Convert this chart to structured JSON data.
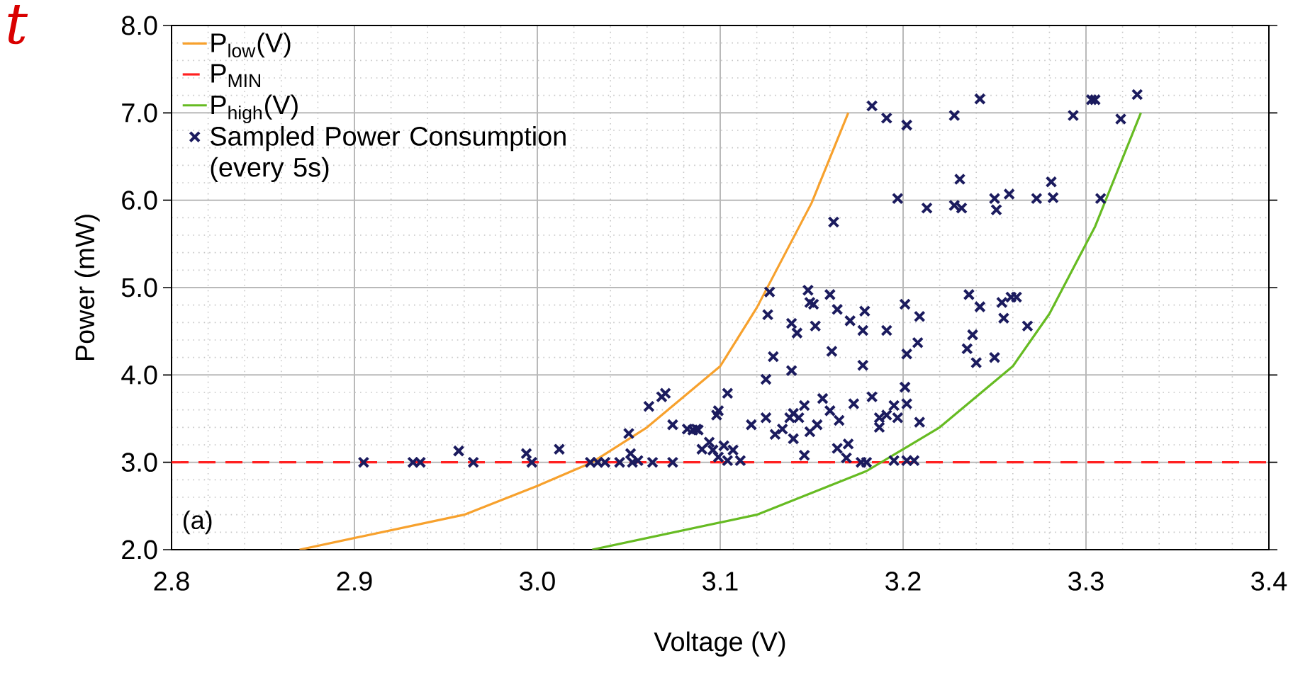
{
  "chart_data": {
    "type": "scatter",
    "xlabel": "Voltage (V)",
    "ylabel": "Power (mW)",
    "xlim": [
      2.8,
      3.4
    ],
    "ylim": [
      2.0,
      8.0
    ],
    "xticks": [
      {
        "value": 2.8,
        "label": "2.8"
      },
      {
        "value": 2.9,
        "label": "2.9"
      },
      {
        "value": 3.0,
        "label": "3.0"
      },
      {
        "value": 3.1,
        "label": "3.1"
      },
      {
        "value": 3.2,
        "label": "3.2"
      },
      {
        "value": 3.3,
        "label": "3.3"
      },
      {
        "value": 3.4,
        "label": "3.4"
      }
    ],
    "yticks": [
      {
        "value": 2,
        "label": "2.0"
      },
      {
        "value": 3,
        "label": "3.0"
      },
      {
        "value": 4,
        "label": "4.0"
      },
      {
        "value": 5,
        "label": "5.0"
      },
      {
        "value": 6,
        "label": "6.0"
      },
      {
        "value": 7,
        "label": "7.0"
      },
      {
        "value": 8,
        "label": "8.0"
      }
    ],
    "grid": true,
    "legend": "top left",
    "annotations": [
      "(a)",
      "t"
    ],
    "series": [
      {
        "name": "P$_{low}$(V)",
        "type": "line",
        "color": "#f7a12d",
        "marker": "none",
        "line_style": "solid",
        "x": [
          2.87,
          2.96,
          3.0,
          3.03,
          3.06,
          3.1,
          3.12,
          3.15,
          3.17
        ],
        "values": [
          2.0,
          2.4,
          2.73,
          3.0,
          3.4,
          4.1,
          4.77,
          5.97,
          7.0
        ]
      },
      {
        "name": "P$_{MIN}$",
        "type": "line",
        "color": "#ff2020",
        "marker": "none",
        "line_style": "dashed",
        "x": [
          2.8,
          3.4
        ],
        "values": [
          3.0,
          3.0
        ]
      },
      {
        "name": "P$_{high}$(V)",
        "type": "line",
        "color": "#66bb22",
        "marker": "none",
        "line_style": "solid",
        "x": [
          3.03,
          3.12,
          3.18,
          3.22,
          3.26,
          3.28,
          3.305,
          3.33
        ],
        "values": [
          2.0,
          2.4,
          2.9,
          3.4,
          4.1,
          4.7,
          5.7,
          7.0
        ]
      },
      {
        "name": "Sampled Power Consumption (every 5s)",
        "color": "#1b1b5e",
        "marker": "cross",
        "x": [
          2.905,
          2.932,
          2.936,
          2.965,
          2.957,
          2.994,
          2.997,
          3.012,
          3.029,
          3.033,
          3.037,
          3.045,
          3.052,
          3.063,
          3.074,
          3.05,
          3.074,
          3.085,
          3.088,
          3.051,
          3.055,
          3.061,
          3.068,
          3.07,
          3.082,
          3.087,
          3.09,
          3.094,
          3.096,
          3.099,
          3.102,
          3.104,
          3.107,
          3.111,
          3.098,
          3.099,
          3.104,
          3.117,
          3.125,
          3.129,
          3.126,
          3.127,
          3.125,
          3.13,
          3.134,
          3.138,
          3.14,
          3.143,
          3.146,
          3.14,
          3.146,
          3.149,
          3.153,
          3.156,
          3.16,
          3.165,
          3.173,
          3.183,
          3.187,
          3.187,
          3.191,
          3.195,
          3.197,
          3.201,
          3.202,
          3.209,
          3.164,
          3.17,
          3.169,
          3.177,
          3.18,
          3.195,
          3.202,
          3.206,
          3.139,
          3.142,
          3.148,
          3.149,
          3.152,
          3.16,
          3.164,
          3.171,
          3.179,
          3.178,
          3.191,
          3.161,
          3.178,
          3.139,
          3.201,
          3.209,
          3.208,
          3.202,
          3.183,
          3.191,
          3.202,
          3.228,
          3.242,
          3.293,
          3.303,
          3.305,
          3.319,
          3.328,
          3.162,
          3.197,
          3.213,
          3.228,
          3.231,
          3.232,
          3.25,
          3.251,
          3.258,
          3.273,
          3.281,
          3.282,
          3.308,
          3.151,
          3.236,
          3.242,
          3.238,
          3.254,
          3.255,
          3.259,
          3.262,
          3.268,
          3.24,
          3.25,
          3.235
        ],
        "values": [
          3.0,
          3.0,
          3.0,
          3.0,
          3.13,
          3.1,
          3.0,
          3.15,
          3.0,
          3.0,
          3.0,
          3.0,
          3.0,
          3.0,
          3.0,
          3.33,
          3.43,
          3.37,
          3.37,
          3.1,
          3.02,
          3.64,
          3.75,
          3.79,
          3.38,
          3.38,
          3.15,
          3.23,
          3.14,
          3.06,
          3.19,
          3.02,
          3.14,
          3.02,
          3.54,
          3.59,
          3.79,
          3.43,
          3.95,
          4.21,
          4.69,
          4.95,
          3.51,
          3.32,
          3.38,
          3.51,
          3.56,
          3.51,
          3.65,
          3.27,
          3.08,
          3.35,
          3.43,
          3.73,
          3.59,
          3.48,
          3.67,
          3.75,
          3.51,
          3.4,
          3.54,
          3.65,
          3.51,
          3.86,
          3.67,
          3.46,
          3.16,
          3.21,
          3.05,
          3.0,
          3.0,
          3.02,
          3.02,
          3.02,
          4.59,
          4.48,
          4.97,
          4.83,
          4.56,
          4.92,
          4.75,
          4.62,
          4.73,
          4.51,
          4.51,
          4.27,
          4.11,
          4.05,
          4.81,
          4.67,
          4.37,
          4.24,
          7.08,
          6.94,
          6.86,
          6.97,
          7.16,
          6.97,
          7.15,
          7.15,
          6.93,
          7.21,
          5.75,
          6.02,
          5.91,
          5.94,
          6.24,
          5.91,
          6.02,
          5.89,
          6.07,
          6.02,
          6.21,
          6.03,
          6.02,
          4.81,
          4.92,
          4.78,
          4.46,
          4.83,
          4.65,
          4.89,
          4.89,
          4.56,
          4.14,
          4.2,
          4.3
        ]
      }
    ]
  }
}
